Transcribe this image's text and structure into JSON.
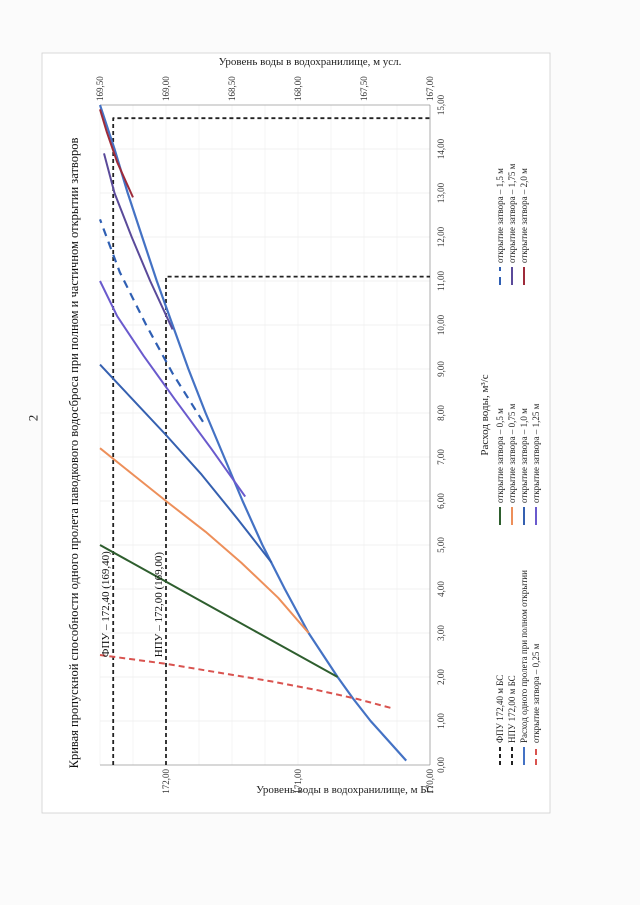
{
  "page": {
    "number": "2"
  },
  "chart_data": {
    "type": "line",
    "orientation": "rotated-90-ccw",
    "title": "Кривая пропускной способности одного пролета паводкового водосброса при полном и частичном открытии затворов",
    "xlabel": "Расход воды, м³/с",
    "ylabel_left": "Уровень воды в водохранилище, м БС",
    "ylabel_right": "Уровень воды в водохранилище, м усл.",
    "xlim": [
      0,
      15
    ],
    "ylim_left": [
      170,
      172.5
    ],
    "ylim_right": [
      167,
      169.5
    ],
    "x_ticks": [
      "0,00",
      "1,00",
      "2,00",
      "3,00",
      "4,00",
      "5,00",
      "6,00",
      "7,00",
      "8,00",
      "9,00",
      "10,00",
      "11,00",
      "12,00",
      "13,00",
      "14,00",
      "15,00"
    ],
    "y_ticks_left": [
      "170,00",
      "171,00",
      "172,00"
    ],
    "y_ticks_right": [
      "167,00",
      "167,50",
      "168,00",
      "168,50",
      "169,00",
      "169,50"
    ],
    "grid": true,
    "legend_position": "bottom",
    "annotations": [
      {
        "text": "ФПУ – 172,40  (169,40)",
        "x": 2.45,
        "y": 172.4
      },
      {
        "text": "НПУ – 172,00  (169,00)",
        "x": 2.45,
        "y": 172.0
      }
    ],
    "series": [
      {
        "name": "ФПУ 172,40 м БС",
        "color": "#222222",
        "dash": "4,3",
        "width": 1.8,
        "x": [
          0,
          14.7,
          14.7
        ],
        "y": [
          172.4,
          172.4,
          170.0
        ]
      },
      {
        "name": "НПУ 172,00 м БС",
        "color": "#222222",
        "dash": "4,3",
        "width": 1.8,
        "x": [
          0,
          11.1,
          11.1
        ],
        "y": [
          172.0,
          172.0,
          170.0
        ]
      },
      {
        "name": "Расход одного пролета при полном открытии",
        "color": "#4472c4",
        "dash": "",
        "width": 2.2,
        "x": [
          0.1,
          0.5,
          1.0,
          1.5,
          2.0,
          3.0,
          4.0,
          5.0,
          6.0,
          7.0,
          8.0,
          9.0,
          10.0,
          11.0,
          12.0,
          13.0,
          14.0,
          15.0
        ],
        "y": [
          170.18,
          170.3,
          170.45,
          170.58,
          170.7,
          170.92,
          171.1,
          171.27,
          171.42,
          171.56,
          171.7,
          171.83,
          171.95,
          172.07,
          172.18,
          172.29,
          172.39,
          172.5
        ]
      },
      {
        "name": "открытие затвора – 0,25 м",
        "color": "#d9534f",
        "dash": "6,4",
        "width": 2.0,
        "x": [
          1.3,
          1.5,
          1.7,
          1.9,
          2.1,
          2.3,
          2.5
        ],
        "y": [
          170.3,
          170.55,
          170.85,
          171.2,
          171.6,
          172.0,
          172.5
        ]
      },
      {
        "name": "открытие затвора – 0,5 м",
        "color": "#2e5e2e",
        "dash": "",
        "width": 2.0,
        "x": [
          2.0,
          2.5,
          3.0,
          3.5,
          4.0,
          4.5,
          5.0
        ],
        "y": [
          170.7,
          171.0,
          171.3,
          171.6,
          171.9,
          172.2,
          172.5
        ]
      },
      {
        "name": "открытие затвора – 0,75 м",
        "color": "#ed8f5a",
        "dash": "",
        "width": 2.0,
        "x": [
          3.0,
          3.8,
          4.6,
          5.3,
          6.0,
          6.6,
          7.2
        ],
        "y": [
          170.92,
          171.15,
          171.43,
          171.7,
          172.0,
          172.25,
          172.5
        ]
      },
      {
        "name": "открытие затвора – 1,0 м",
        "color": "#3560b0",
        "dash": "",
        "width": 2.0,
        "x": [
          4.6,
          5.6,
          6.6,
          7.5,
          8.3,
          9.1
        ],
        "y": [
          171.2,
          171.46,
          171.73,
          172.0,
          172.25,
          172.5
        ]
      },
      {
        "name": "открытие затвора – 1,25 м",
        "color": "#6a5acd",
        "dash": "",
        "width": 2.0,
        "x": [
          6.1,
          7.2,
          8.3,
          9.3,
          10.2,
          11.0
        ],
        "y": [
          171.4,
          171.66,
          171.93,
          172.17,
          172.37,
          172.5
        ]
      },
      {
        "name": "открытие затвора – 1,5 м",
        "color": "#2f5fb3",
        "dash": "8,6",
        "width": 2.2,
        "x": [
          7.8,
          8.9,
          10.0,
          11.2,
          12.4
        ],
        "y": [
          171.72,
          171.95,
          172.15,
          172.35,
          172.5
        ]
      },
      {
        "name": "открытие затвора – 1,75 м",
        "color": "#5a4a9a",
        "dash": "",
        "width": 2.0,
        "x": [
          9.9,
          11.0,
          12.0,
          13.0,
          13.9
        ],
        "y": [
          171.95,
          172.12,
          172.26,
          172.39,
          172.47
        ]
      },
      {
        "name": "открытие затвора – 2,0 м",
        "color": "#9e2b3a",
        "dash": "",
        "width": 2.0,
        "x": [
          12.9,
          13.7,
          14.4,
          14.9
        ],
        "y": [
          172.25,
          172.37,
          172.45,
          172.5
        ]
      }
    ]
  }
}
